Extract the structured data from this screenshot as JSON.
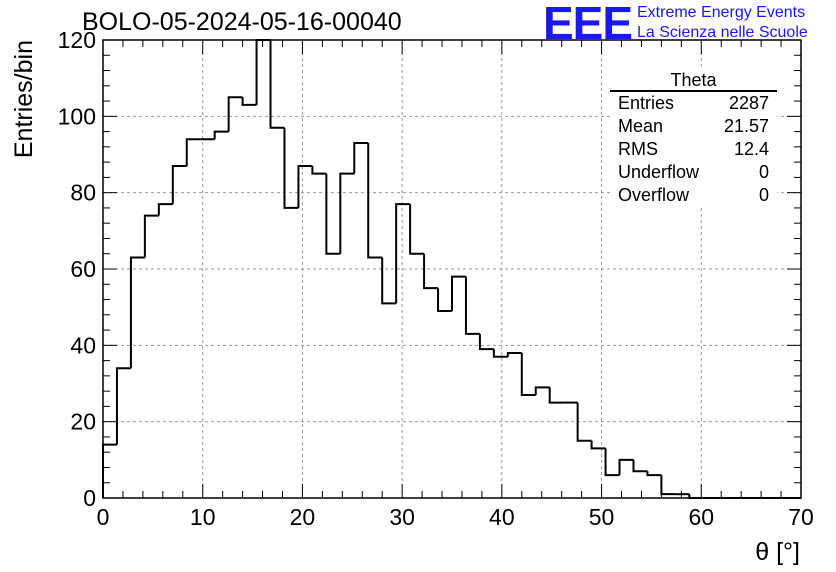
{
  "title": "BOLO-05-2024-05-16-00040",
  "logo": {
    "mark": "EEE",
    "line1": "Extreme Energy Events",
    "line2": "La Scienza nelle Scuole",
    "color": "#1a1aee"
  },
  "stats": {
    "title": "Theta",
    "rows": [
      {
        "label": "Entries",
        "value": "2287"
      },
      {
        "label": "Mean",
        "value": "21.57"
      },
      {
        "label": "RMS",
        "value": "12.4"
      },
      {
        "label": "Underflow",
        "value": "0"
      },
      {
        "label": "Overflow",
        "value": "0"
      }
    ]
  },
  "chart_data": {
    "type": "histogram",
    "title": "BOLO-05-2024-05-16-00040",
    "xlabel": "θ [°]",
    "ylabel": "Entries/bin",
    "xlim": [
      0,
      70
    ],
    "ylim": [
      0,
      120
    ],
    "xticks": [
      0,
      10,
      20,
      30,
      40,
      50,
      60,
      70
    ],
    "yticks": [
      0,
      20,
      40,
      60,
      80,
      100,
      120
    ],
    "grid": true,
    "bin_width": 1.4,
    "bin_edges_start": 0,
    "values": [
      14,
      34,
      63,
      74,
      77,
      87,
      94,
      94,
      96,
      105,
      103,
      120,
      97,
      76,
      87,
      85,
      64,
      85,
      93,
      63,
      51,
      77,
      64,
      55,
      49,
      58,
      43,
      39,
      37,
      38,
      27,
      29,
      25,
      25,
      15,
      13,
      6,
      10,
      7,
      6,
      1,
      1,
      0,
      0,
      0,
      0,
      0,
      0,
      0,
      0
    ]
  }
}
